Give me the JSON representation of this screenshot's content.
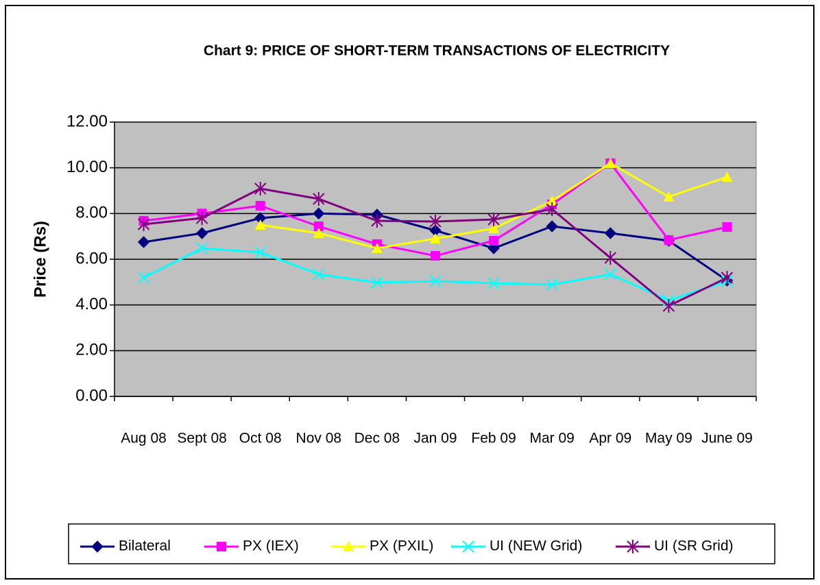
{
  "chart_data": {
    "type": "line",
    "title": "Chart 9: PRICE OF SHORT-TERM TRANSACTIONS OF ELECTRICITY",
    "y_label": "Price (Rs)",
    "categories": [
      "Aug 08",
      "Sept 08",
      "Oct 08",
      "Nov 08",
      "Dec 08",
      "Jan 09",
      "Feb 09",
      "Mar 09",
      "Apr 09",
      "May 09",
      "June 09"
    ],
    "series": [
      {
        "name": "Bilateral",
        "color": "#000080",
        "marker": "diamond",
        "values": [
          6.75,
          7.14,
          7.8,
          8.0,
          7.95,
          7.26,
          6.48,
          7.44,
          7.14,
          6.81,
          5.07
        ]
      },
      {
        "name": "PX (IEX)",
        "color": "#ff00ff",
        "marker": "square",
        "values": [
          7.68,
          8.0,
          8.34,
          7.44,
          6.66,
          6.15,
          6.81,
          8.4,
          10.2,
          6.84,
          7.41
        ]
      },
      {
        "name": "PX (PXIL)",
        "color": "#ffff00",
        "marker": "triangle",
        "values": [
          null,
          null,
          7.5,
          7.14,
          6.48,
          6.9,
          7.35,
          8.55,
          10.2,
          8.73,
          9.6
        ]
      },
      {
        "name": "UI (NEW Grid)",
        "color": "#00ffff",
        "marker": "x",
        "values": [
          5.19,
          6.48,
          6.3,
          5.34,
          4.98,
          5.04,
          4.95,
          4.89,
          5.34,
          4.2,
          5.04
        ]
      },
      {
        "name": "UI (SR Grid)",
        "color": "#800080",
        "marker": "star",
        "values": [
          7.53,
          7.8,
          9.09,
          8.64,
          7.68,
          7.65,
          7.74,
          8.19,
          6.06,
          3.96,
          5.19
        ]
      }
    ],
    "ylim": [
      0,
      12
    ],
    "yticks": [
      {
        "value": 0,
        "label": "0.00"
      },
      {
        "value": 2,
        "label": "2.00"
      },
      {
        "value": 4,
        "label": "4.00"
      },
      {
        "value": 6,
        "label": "6.00"
      },
      {
        "value": 8,
        "label": "8.00"
      },
      {
        "value": 10,
        "label": "10.00"
      },
      {
        "value": 12,
        "label": "12.00"
      }
    ],
    "grid": true,
    "legend": "bottom"
  }
}
